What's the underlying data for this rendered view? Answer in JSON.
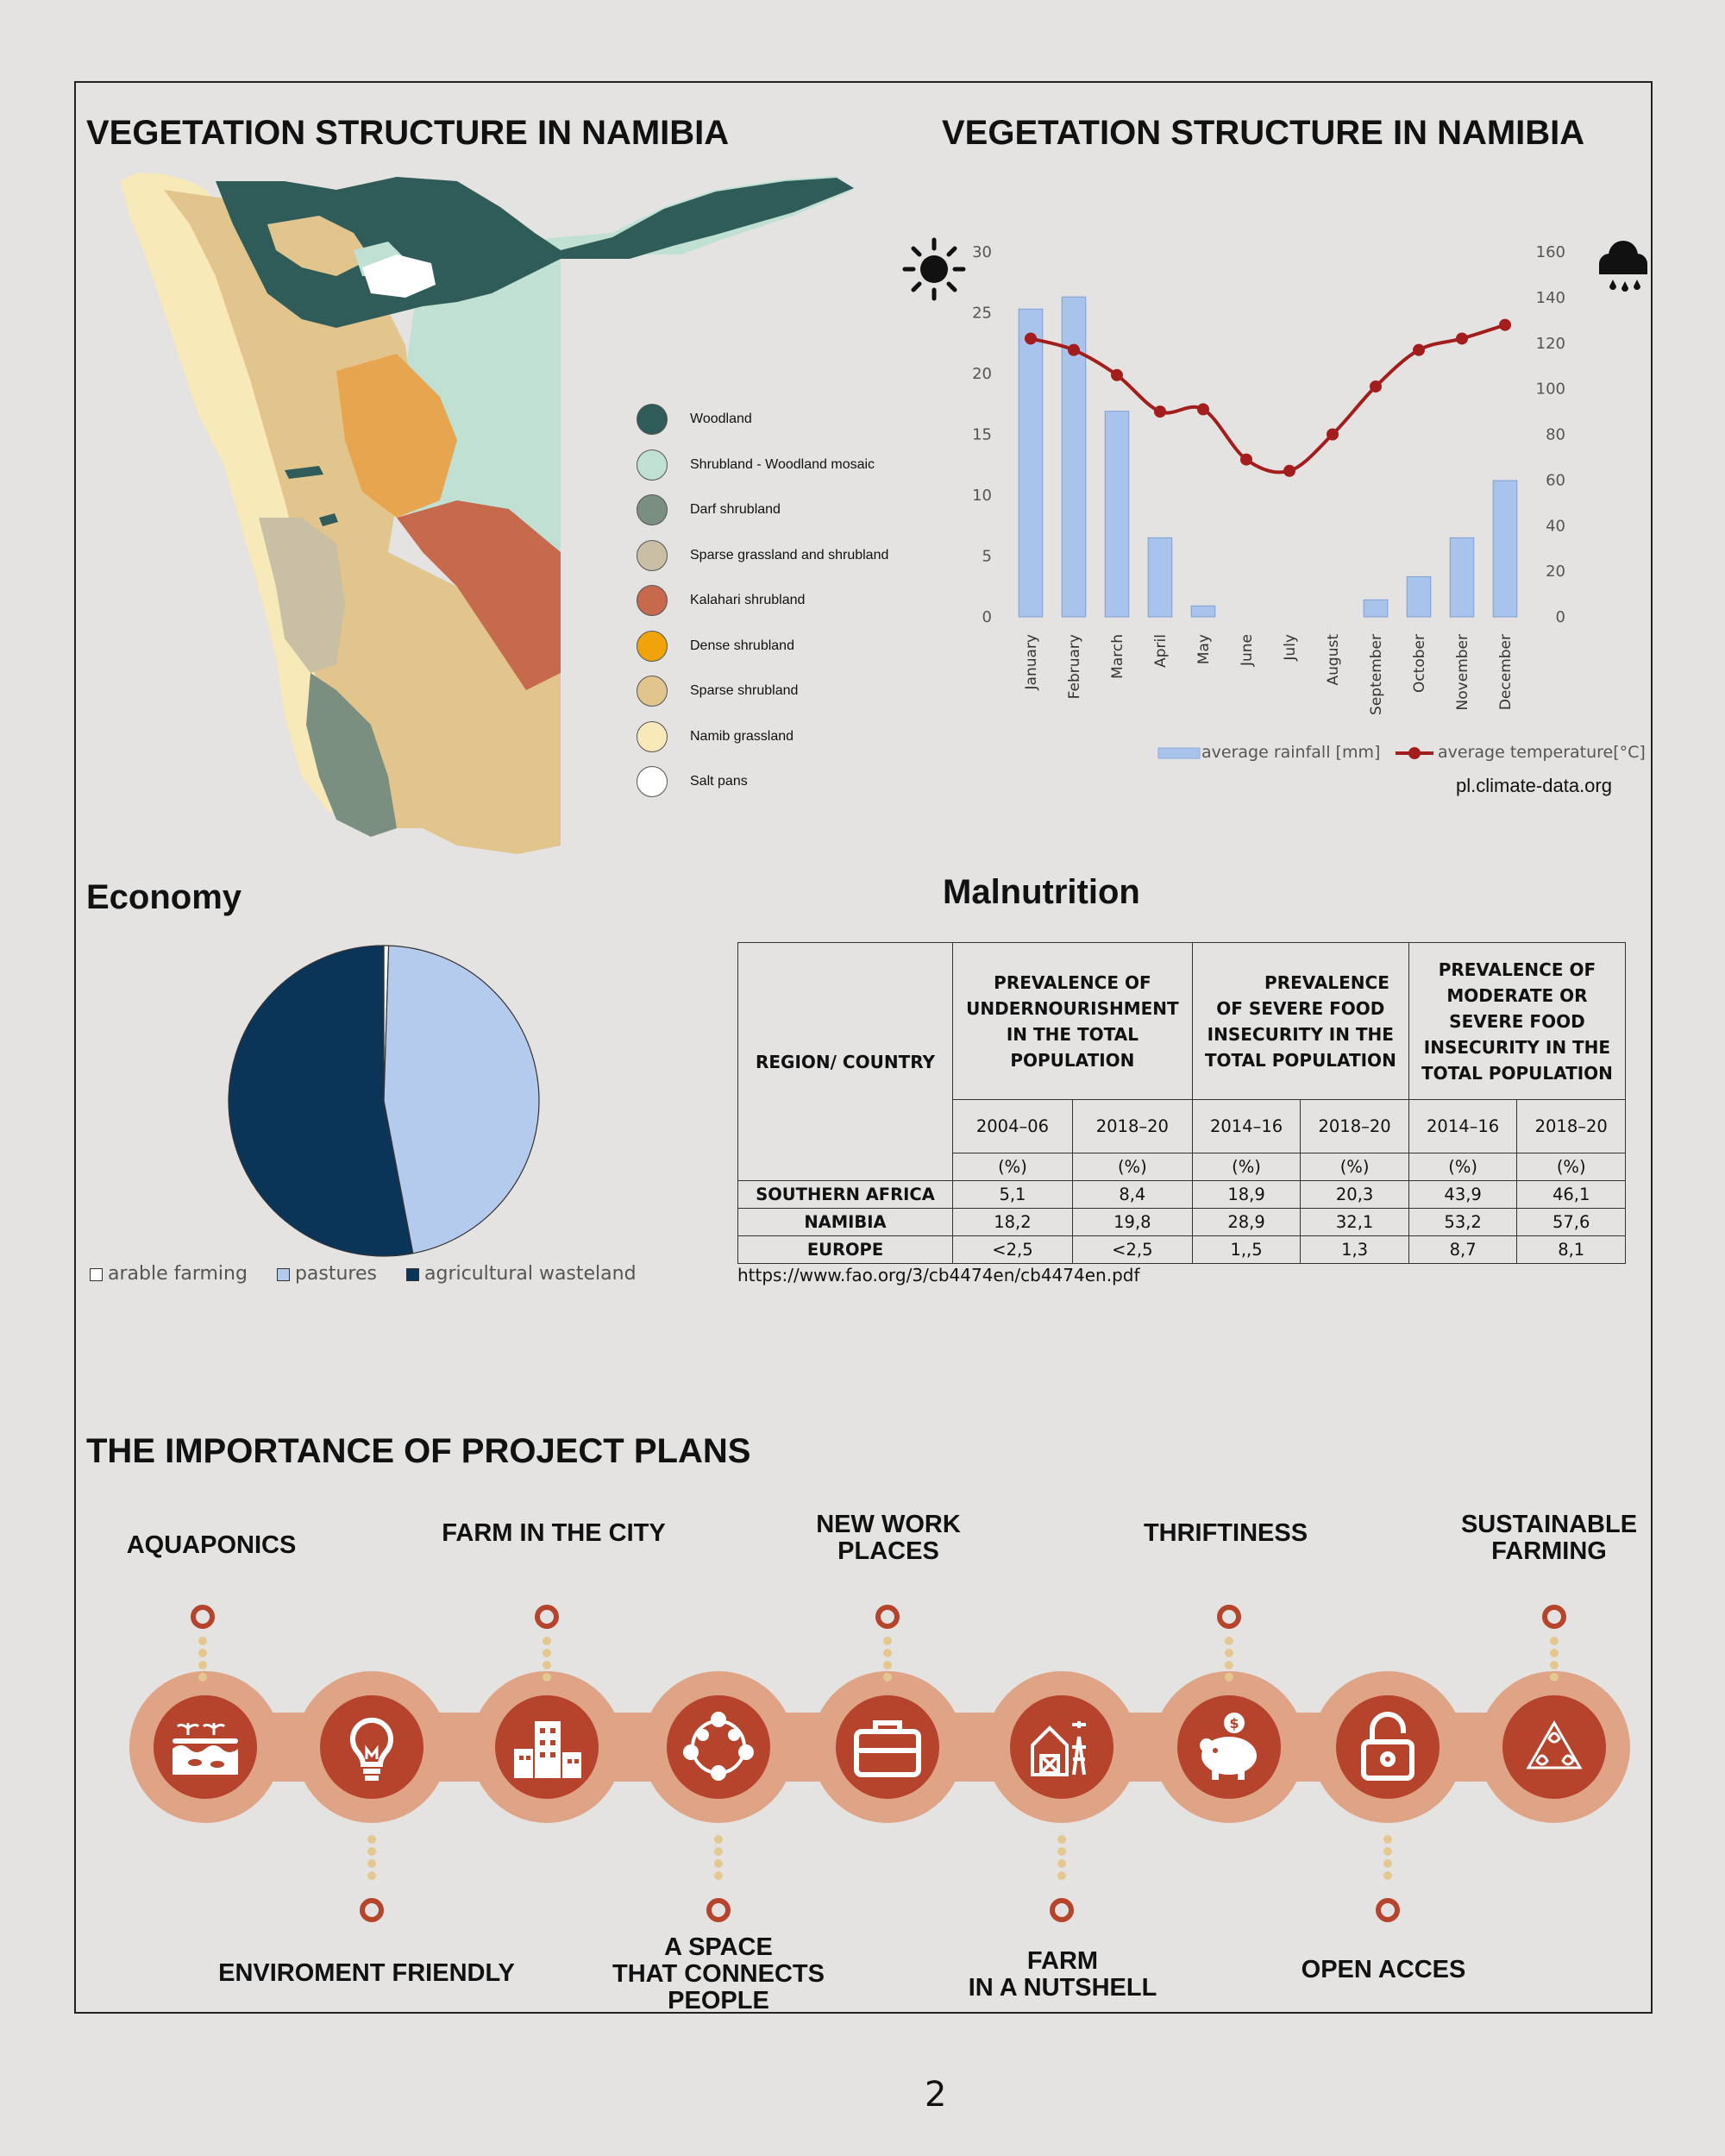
{
  "map_section": {
    "title": "VEGETATION STRUCTURE IN NAMIBIA",
    "legend": [
      {
        "label": "Woodland",
        "color": "#2f5c58"
      },
      {
        "label": "Shrubland - Woodland mosaic",
        "color": "#bfe0d2"
      },
      {
        "label": "Darf shrubland",
        "color": "#7a8f80"
      },
      {
        "label": "Sparse grassland and shrubland",
        "color": "#c8bfa4"
      },
      {
        "label": "Kalahari shrubland",
        "color": "#c6694c"
      },
      {
        "label": "Dense shrubland",
        "color": "#f0a30a"
      },
      {
        "label": "Sparse shrubland",
        "color": "#e2c48d"
      },
      {
        "label": "Namib grassland",
        "color": "#f8e9b8"
      },
      {
        "label": "Salt pans",
        "color": "#ffffff"
      }
    ]
  },
  "climate_section": {
    "title": "VEGETATION STRUCTURE IN NAMIBIA",
    "source": "pl.climate-data.org",
    "sun_icon": "sun-icon",
    "rain_icon": "rain-cloud-icon"
  },
  "chart_data": {
    "type": "bar",
    "categories": [
      "January",
      "February",
      "March",
      "April",
      "May",
      "June",
      "July",
      "August",
      "September",
      "October",
      "November",
      "December"
    ],
    "series": [
      {
        "name": "average rainfall [mm]",
        "type": "bar",
        "axis": "left",
        "values": [
          25.3,
          26.3,
          16.9,
          6.5,
          0.9,
          0,
          0,
          0,
          1.4,
          3.3,
          6.5,
          11.2
        ],
        "color": "#a9c4ec"
      },
      {
        "name": "average temperature[°C]",
        "type": "line",
        "axis": "right",
        "values": [
          122,
          117,
          106,
          90,
          91,
          69,
          64,
          80,
          101,
          117,
          122,
          128
        ],
        "color": "#a31d1d"
      }
    ],
    "left_axis": {
      "ylim": [
        0,
        30
      ],
      "ticks": [
        0,
        5,
        10,
        15,
        20,
        25,
        30
      ]
    },
    "right_axis": {
      "ylim": [
        0,
        160
      ],
      "ticks": [
        0,
        20,
        40,
        60,
        80,
        100,
        120,
        140,
        160
      ]
    },
    "grid": false,
    "legend_position": "bottom-right"
  },
  "economy": {
    "title": "Economy",
    "pie": [
      {
        "label": "arable farming",
        "value": 0.5,
        "color": "#ffffff"
      },
      {
        "label": "pastures",
        "value": 46.5,
        "color": "#b4cbee"
      },
      {
        "label": "agricultural wasteland",
        "value": 53.0,
        "color": "#0b3558"
      }
    ]
  },
  "malnutrition": {
    "title": "Malnutrition",
    "region_header": "REGION/ COUNTRY",
    "group_headers": [
      [
        "PREVALENCE OF",
        "UNDERNOURISHMENT",
        "IN THE TOTAL",
        "POPULATION"
      ],
      [
        "PREVALENCE",
        "OF SEVERE FOOD",
        "INSECURITY IN THE",
        "TOTAL POPULATION"
      ],
      [
        "PREVALENCE OF",
        "MODERATE OR",
        "SEVERE FOOD",
        "INSECURITY IN THE",
        "TOTAL POPULATION"
      ]
    ],
    "periods": [
      "2004–06",
      "2018–20",
      "2014–16",
      "2018–20",
      "2014–16",
      "2018–20"
    ],
    "unit": "(%)",
    "rows": [
      {
        "region": "SOUTHERN AFRICA",
        "values": [
          "5,1",
          "8,4",
          "18,9",
          "20,3",
          "43,9",
          "46,1"
        ]
      },
      {
        "region": "NAMIBIA",
        "values": [
          "18,2",
          "19,8",
          "28,9",
          "32,1",
          "53,2",
          "57,6"
        ]
      },
      {
        "region": "EUROPE",
        "values": [
          "<2,5",
          "<2,5",
          "1,,5",
          "1,3",
          "8,7",
          "8,1"
        ]
      }
    ],
    "source": "https://www.fao.org/3/cb4474en/cb4474en.pdf"
  },
  "plans": {
    "title": "THE IMPORTANCE OF PROJECT PLANS",
    "top_labels": [
      [
        "AQUAPONICS"
      ],
      [
        "FARM IN THE CITY"
      ],
      [
        "NEW WORK",
        "PLACES"
      ],
      [
        "THRIFTINESS"
      ],
      [
        "SUSTAINABLE",
        "FARMING"
      ]
    ],
    "bottom_labels": [
      [
        "ENVIROMENT FRIENDLY"
      ],
      [
        "A SPACE",
        "THAT CONNECTS",
        "PEOPLE"
      ],
      [
        "FARM",
        "IN A NUTSHELL"
      ],
      [
        "OPEN ACCES"
      ]
    ],
    "icons": [
      "aquaponics-icon",
      "lightbulb-icon",
      "city-farm-icon",
      "people-network-icon",
      "briefcase-icon",
      "barn-icon",
      "piggy-bank-icon",
      "padlock-icon",
      "recycle-leaf-icon"
    ],
    "accent_color": "#b6432b",
    "band_color": "#dfa486"
  },
  "page_number": "2"
}
